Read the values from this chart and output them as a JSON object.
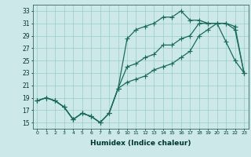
{
  "xlabel": "Humidex (Indice chaleur)",
  "background_color": "#cce8e8",
  "grid_color": "#99cccc",
  "line_color": "#1a6b5a",
  "xlim": [
    -0.5,
    23.5
  ],
  "ylim": [
    14,
    34
  ],
  "xticks": [
    0,
    1,
    2,
    3,
    4,
    5,
    6,
    7,
    8,
    9,
    10,
    11,
    12,
    13,
    14,
    15,
    16,
    17,
    18,
    19,
    20,
    21,
    22,
    23
  ],
  "yticks": [
    15,
    17,
    19,
    21,
    23,
    25,
    27,
    29,
    31,
    33
  ],
  "line1_x": [
    0,
    1,
    2,
    3,
    4,
    5,
    6,
    7,
    8,
    9,
    10,
    11,
    12,
    13,
    14,
    15,
    16,
    17,
    18,
    19,
    20,
    21,
    22,
    23
  ],
  "line1_y": [
    18.5,
    19.0,
    18.5,
    17.5,
    15.5,
    16.5,
    16.0,
    15.0,
    16.5,
    20.5,
    28.5,
    30.0,
    30.5,
    31.0,
    32.0,
    32.0,
    33.0,
    31.5,
    31.5,
    31.0,
    31.0,
    28.0,
    25.0,
    23.0
  ],
  "line2_x": [
    0,
    1,
    2,
    3,
    4,
    5,
    6,
    7,
    8,
    9,
    10,
    11,
    12,
    13,
    14,
    15,
    16,
    17,
    18,
    19,
    20,
    21,
    22,
    23
  ],
  "line2_y": [
    18.5,
    19.0,
    18.5,
    17.5,
    15.5,
    16.5,
    16.0,
    15.0,
    16.5,
    20.5,
    24.0,
    24.5,
    25.5,
    26.0,
    27.5,
    27.5,
    28.5,
    29.0,
    31.0,
    31.0,
    31.0,
    31.0,
    30.5,
    23.0
  ],
  "line3_x": [
    0,
    1,
    2,
    3,
    4,
    5,
    6,
    7,
    8,
    9,
    10,
    11,
    12,
    13,
    14,
    15,
    16,
    17,
    18,
    19,
    20,
    21,
    22,
    23
  ],
  "line3_y": [
    18.5,
    19.0,
    18.5,
    17.5,
    15.5,
    16.5,
    16.0,
    15.0,
    16.5,
    20.5,
    21.5,
    22.0,
    22.5,
    23.5,
    24.0,
    24.5,
    25.5,
    26.5,
    29.0,
    30.0,
    31.0,
    31.0,
    30.0,
    23.0
  ]
}
